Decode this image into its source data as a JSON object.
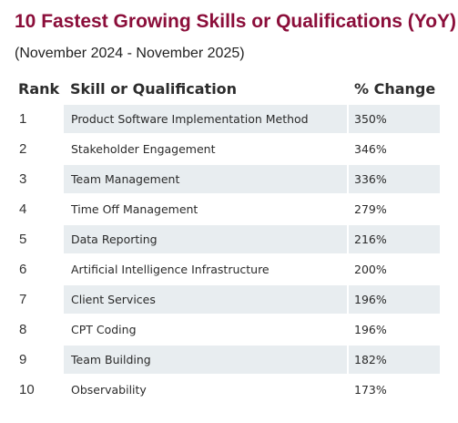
{
  "title": "10 Fastest Growing Skills or Qualifications (YoY)",
  "subtitle": "(November 2024 - November 2025)",
  "table": {
    "headers": {
      "rank": "Rank",
      "skill": "Skill or Qualification",
      "change": "% Change"
    },
    "rows": [
      {
        "rank": "1",
        "skill": "Product Software Implementation Method",
        "change": "350%"
      },
      {
        "rank": "2",
        "skill": "Stakeholder Engagement",
        "change": "346%"
      },
      {
        "rank": "3",
        "skill": "Team Management",
        "change": "336%"
      },
      {
        "rank": "4",
        "skill": "Time Off Management",
        "change": "279%"
      },
      {
        "rank": "5",
        "skill": "Data Reporting",
        "change": "216%"
      },
      {
        "rank": "6",
        "skill": "Artificial Intelligence Infrastructure",
        "change": "200%"
      },
      {
        "rank": "7",
        "skill": "Client Services",
        "change": "196%"
      },
      {
        "rank": "8",
        "skill": "CPT Coding",
        "change": "196%"
      },
      {
        "rank": "9",
        "skill": "Team Building",
        "change": "182%"
      },
      {
        "rank": "10",
        "skill": "Observability",
        "change": "173%"
      }
    ]
  },
  "colors": {
    "title": "#8b0e3a",
    "row_shade": "#e8edf0"
  }
}
